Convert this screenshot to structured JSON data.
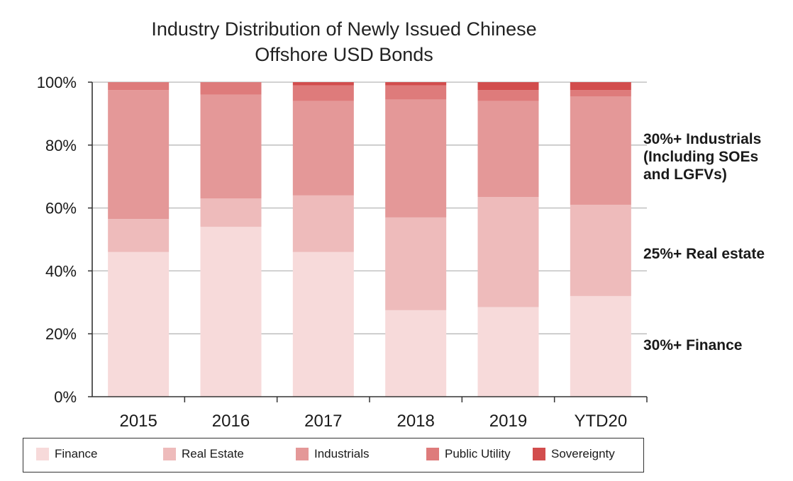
{
  "chart_data": {
    "type": "bar",
    "stacked": true,
    "title": [
      "Industry Distribution of Newly Issued Chinese",
      "Offshore USD Bonds"
    ],
    "categories": [
      "2015",
      "2016",
      "2017",
      "2018",
      "2019",
      "YTD20"
    ],
    "y_ticks": [
      "0%",
      "20%",
      "40%",
      "60%",
      "80%",
      "100%"
    ],
    "ylim": [
      0,
      100
    ],
    "grid": "horizontal",
    "legend_position": "bottom",
    "series": [
      {
        "name": "Finance",
        "color": "#f7dada",
        "values": [
          46,
          54,
          46,
          27.5,
          28.5,
          32
        ]
      },
      {
        "name": "Real Estate",
        "color": "#eebbbb",
        "values": [
          10.5,
          9,
          18,
          29.5,
          35,
          29
        ]
      },
      {
        "name": "Industrials",
        "color": "#e49898",
        "values": [
          41,
          33,
          30,
          37.5,
          30.5,
          34.5
        ]
      },
      {
        "name": "Public Utility",
        "color": "#de7b7b",
        "values": [
          2.5,
          4,
          5,
          4.5,
          3.5,
          2
        ]
      },
      {
        "name": "Sovereignty",
        "color": "#d24d4d",
        "values": [
          0,
          0,
          1,
          1,
          2.5,
          2.5
        ]
      }
    ],
    "annotations": [
      {
        "text_lines": [
          "30%+ Industrials",
          "(Including SOEs",
          "and LGFVs)"
        ]
      },
      {
        "text_lines": [
          "25%+ Real estate"
        ]
      },
      {
        "text_lines": [
          "30%+ Finance"
        ]
      }
    ]
  }
}
